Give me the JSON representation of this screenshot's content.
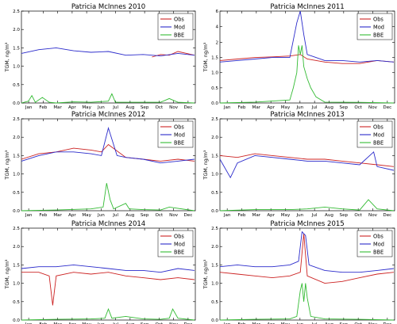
{
  "chart_data": [
    {
      "type": "line",
      "title": "Patricia McInnes 2010",
      "xlabel": "",
      "ylabel": "TGM, ng/m³",
      "ylim": [
        0,
        2.5
      ],
      "yticks": [
        "0.0",
        "0.5",
        "1.0",
        "1.5",
        "2.0",
        "2.5"
      ],
      "categories": [
        "Jan",
        "Feb",
        "Mar",
        "Apr",
        "May",
        "Jun",
        "Jul",
        "Aug",
        "Sep",
        "Oct",
        "Nov",
        "Dec"
      ],
      "grid": false,
      "legend": "top-right",
      "series": [
        {
          "name": "Obs",
          "color": "#cc2222",
          "x": [
            0.75,
            0.8,
            0.85,
            0.9,
            0.95,
            0.995
          ],
          "values": [
            1.25,
            1.32,
            1.3,
            1.4,
            1.35,
            1.3
          ]
        },
        {
          "name": "Mod",
          "color": "#2a2acb",
          "x": [
            0.0,
            0.1,
            0.2,
            0.3,
            0.4,
            0.5,
            0.6,
            0.7,
            0.8,
            0.9,
            0.995
          ],
          "values": [
            1.35,
            1.45,
            1.5,
            1.42,
            1.38,
            1.4,
            1.3,
            1.32,
            1.28,
            1.35,
            1.3
          ]
        },
        {
          "name": "BBE",
          "color": "#33bb33",
          "x": [
            0.0,
            0.04,
            0.06,
            0.08,
            0.12,
            0.16,
            0.2,
            0.3,
            0.4,
            0.5,
            0.52,
            0.54,
            0.6,
            0.7,
            0.8,
            0.85,
            0.9,
            0.995
          ],
          "values": [
            0.0,
            0.05,
            0.2,
            0.02,
            0.15,
            0.02,
            0.0,
            0.03,
            0.02,
            0.05,
            0.25,
            0.02,
            0.02,
            0.02,
            0.02,
            0.12,
            0.02,
            0.0
          ]
        }
      ]
    },
    {
      "type": "line",
      "title": "Patricia McInnes 2011",
      "xlabel": "",
      "ylabel": "TGM, ng/m³",
      "ylim": [
        0,
        6
      ],
      "yticks": [
        "0.0",
        "0.5",
        "1.0",
        "1.5",
        "2",
        "4",
        "6"
      ],
      "categories": [
        "Jan",
        "Feb",
        "Mar",
        "Apr",
        "May",
        "Jun",
        "Jul",
        "Aug",
        "Sep",
        "Oct",
        "Nov",
        "Dec"
      ],
      "grid": false,
      "legend": "top-right",
      "series": [
        {
          "name": "Obs",
          "color": "#cc2222",
          "x": [
            0.0,
            0.1,
            0.2,
            0.3,
            0.4,
            0.46,
            0.5,
            0.6,
            0.7,
            0.8,
            0.9,
            0.995
          ],
          "values": [
            1.4,
            1.45,
            1.5,
            1.52,
            1.55,
            1.6,
            1.45,
            1.35,
            1.3,
            1.3,
            1.4,
            1.35
          ]
        },
        {
          "name": "Mod",
          "color": "#2a2acb",
          "x": [
            0.0,
            0.1,
            0.2,
            0.3,
            0.4,
            0.44,
            0.46,
            0.48,
            0.5,
            0.55,
            0.6,
            0.7,
            0.8,
            0.9,
            0.995
          ],
          "values": [
            1.35,
            1.4,
            1.45,
            1.5,
            1.5,
            4.5,
            6.0,
            3.0,
            1.6,
            1.5,
            1.4,
            1.4,
            1.35,
            1.4,
            1.35
          ]
        },
        {
          "name": "BBE",
          "color": "#33bb33",
          "x": [
            0.0,
            0.2,
            0.4,
            0.42,
            0.44,
            0.45,
            0.46,
            0.47,
            0.48,
            0.5,
            0.52,
            0.55,
            0.6,
            0.8,
            0.995
          ],
          "values": [
            0.0,
            0.03,
            0.1,
            0.5,
            1.0,
            1.9,
            1.6,
            1.9,
            1.2,
            0.8,
            0.5,
            0.2,
            0.03,
            0.02,
            0.0
          ]
        }
      ]
    },
    {
      "type": "line",
      "title": "Patricia McInnes 2012",
      "xlabel": "",
      "ylabel": "TGM, ng/m³",
      "ylim": [
        0,
        2.5
      ],
      "yticks": [
        "0.0",
        "0.5",
        "1.0",
        "1.5",
        "2.0",
        "2.5"
      ],
      "categories": [
        "Jan",
        "Feb",
        "Mar",
        "Apr",
        "May",
        "Jun",
        "Jul",
        "Aug",
        "Sep",
        "Oct",
        "Nov",
        "Dec"
      ],
      "grid": false,
      "legend": "top-right",
      "series": [
        {
          "name": "Obs",
          "color": "#cc2222",
          "x": [
            0.0,
            0.1,
            0.2,
            0.3,
            0.4,
            0.46,
            0.5,
            0.6,
            0.7,
            0.8,
            0.9,
            0.995
          ],
          "values": [
            1.4,
            1.55,
            1.6,
            1.7,
            1.65,
            1.6,
            1.8,
            1.45,
            1.4,
            1.35,
            1.4,
            1.35
          ]
        },
        {
          "name": "Mod",
          "color": "#2a2acb",
          "x": [
            0.0,
            0.1,
            0.2,
            0.3,
            0.4,
            0.46,
            0.5,
            0.55,
            0.6,
            0.7,
            0.8,
            0.9,
            0.995
          ],
          "values": [
            1.35,
            1.5,
            1.6,
            1.6,
            1.55,
            1.5,
            2.25,
            1.5,
            1.45,
            1.4,
            1.3,
            1.35,
            1.4
          ]
        },
        {
          "name": "BBE",
          "color": "#33bb33",
          "x": [
            0.0,
            0.2,
            0.4,
            0.47,
            0.49,
            0.51,
            0.53,
            0.6,
            0.62,
            0.7,
            0.8,
            0.85,
            0.995
          ],
          "values": [
            0.0,
            0.02,
            0.05,
            0.1,
            0.75,
            0.3,
            0.05,
            0.2,
            0.05,
            0.03,
            0.02,
            0.1,
            0.0
          ]
        }
      ]
    },
    {
      "type": "line",
      "title": "Patricia McInnes 2013",
      "xlabel": "",
      "ylabel": "TGM, ng/m³",
      "ylim": [
        0,
        2.5
      ],
      "yticks": [
        "0.0",
        "0.5",
        "1.0",
        "1.5",
        "2.0",
        "2.5"
      ],
      "categories": [
        "Jan",
        "Feb",
        "Mar",
        "Apr",
        "May",
        "Jun",
        "Jul",
        "Aug",
        "Sep",
        "Oct",
        "Nov",
        "Dec"
      ],
      "grid": false,
      "legend": "top-right",
      "series": [
        {
          "name": "Obs",
          "color": "#cc2222",
          "x": [
            0.0,
            0.1,
            0.2,
            0.3,
            0.4,
            0.5,
            0.6,
            0.7,
            0.8,
            0.9,
            0.995
          ],
          "values": [
            1.5,
            1.45,
            1.55,
            1.5,
            1.45,
            1.4,
            1.4,
            1.35,
            1.3,
            1.25,
            1.2
          ]
        },
        {
          "name": "Mod",
          "color": "#2a2acb",
          "x": [
            0.0,
            0.06,
            0.1,
            0.2,
            0.3,
            0.4,
            0.5,
            0.6,
            0.7,
            0.8,
            0.88,
            0.9,
            0.995
          ],
          "values": [
            1.4,
            0.9,
            1.3,
            1.5,
            1.45,
            1.4,
            1.35,
            1.35,
            1.3,
            1.25,
            1.6,
            1.2,
            1.1
          ]
        },
        {
          "name": "BBE",
          "color": "#33bb33",
          "x": [
            0.0,
            0.2,
            0.4,
            0.5,
            0.6,
            0.7,
            0.8,
            0.85,
            0.9,
            0.995
          ],
          "values": [
            0.0,
            0.03,
            0.03,
            0.05,
            0.1,
            0.05,
            0.02,
            0.3,
            0.05,
            0.0
          ]
        }
      ]
    },
    {
      "type": "line",
      "title": "Patricia McInnes 2014",
      "xlabel": "",
      "ylabel": "TGM, ng/m³",
      "ylim": [
        0,
        2.5
      ],
      "yticks": [
        "0.0",
        "0.5",
        "1.0",
        "1.5",
        "2.0",
        "2.5"
      ],
      "categories": [
        "Jan",
        "Feb",
        "Mar",
        "Apr",
        "May",
        "Jun",
        "Jul",
        "Aug",
        "Sep",
        "Oct",
        "Nov",
        "Dec"
      ],
      "grid": false,
      "legend": "top-right",
      "series": [
        {
          "name": "Obs",
          "color": "#cc2222",
          "x": [
            0.0,
            0.1,
            0.16,
            0.18,
            0.2,
            0.3,
            0.4,
            0.5,
            0.6,
            0.7,
            0.8,
            0.9,
            0.995
          ],
          "values": [
            1.3,
            1.3,
            1.2,
            0.4,
            1.2,
            1.3,
            1.25,
            1.3,
            1.2,
            1.15,
            1.1,
            1.15,
            1.1
          ]
        },
        {
          "name": "Mod",
          "color": "#2a2acb",
          "x": [
            0.0,
            0.1,
            0.2,
            0.3,
            0.4,
            0.5,
            0.6,
            0.7,
            0.8,
            0.9,
            0.995
          ],
          "values": [
            1.4,
            1.45,
            1.45,
            1.5,
            1.45,
            1.4,
            1.35,
            1.35,
            1.3,
            1.4,
            1.35
          ]
        },
        {
          "name": "BBE",
          "color": "#33bb33",
          "x": [
            0.0,
            0.2,
            0.4,
            0.48,
            0.5,
            0.52,
            0.6,
            0.7,
            0.8,
            0.85,
            0.87,
            0.9,
            0.995
          ],
          "values": [
            0.0,
            0.02,
            0.03,
            0.05,
            0.3,
            0.05,
            0.1,
            0.03,
            0.02,
            0.05,
            0.3,
            0.05,
            0.0
          ]
        }
      ]
    },
    {
      "type": "line",
      "title": "Patricia McInnes 2015",
      "xlabel": "",
      "ylabel": "TGM, ng/m³",
      "ylim": [
        0,
        2.5
      ],
      "yticks": [
        "0.0",
        "0.5",
        "1.0",
        "1.5",
        "2.0",
        "2.5"
      ],
      "categories": [
        "Jan",
        "Feb",
        "Mar",
        "Apr",
        "May",
        "Jun",
        "Jul",
        "Aug",
        "Sep",
        "Oct",
        "Nov",
        "Dec"
      ],
      "grid": false,
      "legend": "top-right",
      "series": [
        {
          "name": "Obs",
          "color": "#cc2222",
          "x": [
            0.0,
            0.1,
            0.2,
            0.3,
            0.4,
            0.46,
            0.48,
            0.5,
            0.6,
            0.7,
            0.8,
            0.9,
            0.995
          ],
          "values": [
            1.3,
            1.25,
            1.2,
            1.15,
            1.2,
            1.3,
            2.35,
            1.2,
            1.0,
            1.05,
            1.15,
            1.25,
            1.3
          ]
        },
        {
          "name": "Mod",
          "color": "#2a2acb",
          "x": [
            0.0,
            0.1,
            0.2,
            0.3,
            0.4,
            0.45,
            0.47,
            0.49,
            0.51,
            0.6,
            0.7,
            0.8,
            0.9,
            0.995
          ],
          "values": [
            1.45,
            1.5,
            1.45,
            1.45,
            1.5,
            1.6,
            2.4,
            2.3,
            1.5,
            1.35,
            1.3,
            1.3,
            1.35,
            1.4
          ]
        },
        {
          "name": "BBE",
          "color": "#33bb33",
          "x": [
            0.0,
            0.2,
            0.4,
            0.44,
            0.46,
            0.47,
            0.48,
            0.49,
            0.5,
            0.52,
            0.6,
            0.8,
            0.995
          ],
          "values": [
            0.0,
            0.02,
            0.03,
            0.1,
            0.8,
            1.0,
            0.5,
            1.0,
            0.6,
            0.1,
            0.03,
            0.02,
            0.0
          ]
        }
      ]
    }
  ]
}
